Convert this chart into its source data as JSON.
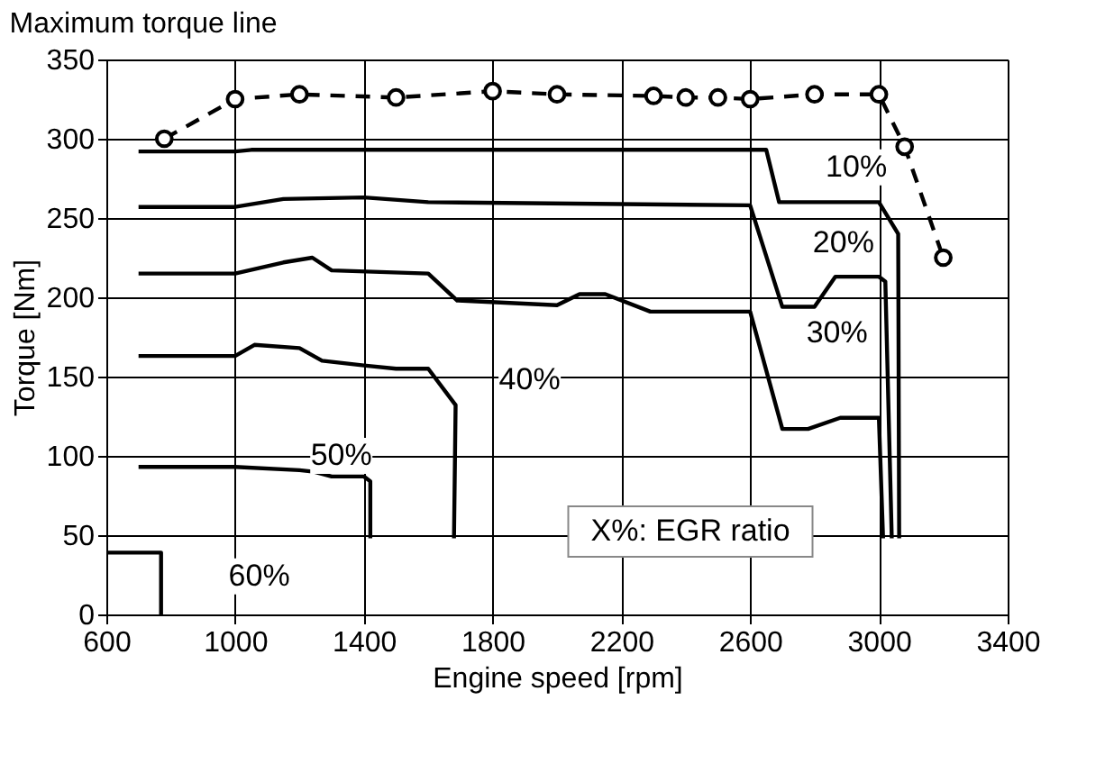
{
  "chart_data": {
    "type": "line",
    "title": "Maximum torque line",
    "xlabel": "Engine speed [rpm]",
    "ylabel": "Torque [Nm]",
    "xlim": [
      600,
      3400
    ],
    "xticks": [
      600,
      1000,
      1400,
      1800,
      2200,
      2600,
      3000,
      3400
    ],
    "ylim": [
      0,
      350
    ],
    "yticks": [
      0,
      50,
      100,
      150,
      200,
      250,
      300,
      350
    ],
    "grid": true,
    "series": [
      {
        "color": "#000000",
        "line_style": "dashed",
        "marker": "circle",
        "x": [
          780,
          1000,
          1200,
          1500,
          1800,
          2000,
          2300,
          2400,
          2500,
          2600,
          2800,
          3000,
          3080,
          3200
        ],
        "values": [
          300,
          325,
          328,
          326,
          330,
          328,
          327,
          326,
          326,
          325,
          328,
          328,
          295,
          225
        ]
      },
      {
        "color": "#000000",
        "line_style": "solid",
        "marker": "none",
        "x": [
          700,
          1000,
          1050,
          2650,
          2690,
          3000,
          3060,
          3063
        ],
        "values": [
          292,
          292,
          293,
          293,
          260,
          260,
          240,
          48
        ]
      },
      {
        "color": "#000000",
        "line_style": "solid",
        "marker": "none",
        "x": [
          700,
          1000,
          1150,
          1400,
          1600,
          2600,
          2700,
          2800,
          2865,
          3000,
          3020,
          3040
        ],
        "values": [
          257,
          257,
          262,
          263,
          260,
          258,
          194,
          194,
          213,
          213,
          210,
          48
        ]
      },
      {
        "color": "#000000",
        "line_style": "solid",
        "marker": "none",
        "x": [
          700,
          1000,
          1150,
          1240,
          1300,
          1600,
          1690,
          2000,
          2070,
          2150,
          2290,
          2600,
          2700,
          2780,
          2880,
          3000,
          3013
        ],
        "values": [
          215,
          215,
          222,
          225,
          217,
          215,
          198,
          195,
          202,
          202,
          191,
          191,
          117,
          117,
          124,
          124,
          48
        ]
      },
      {
        "color": "#000000",
        "line_style": "solid",
        "marker": "none",
        "x": [
          700,
          1000,
          1060,
          1200,
          1270,
          1400,
          1500,
          1600,
          1685,
          1680
        ],
        "values": [
          163,
          163,
          170,
          168,
          160,
          157,
          155,
          155,
          132,
          48
        ]
      },
      {
        "color": "#000000",
        "line_style": "solid",
        "marker": "none",
        "x": [
          700,
          1000,
          1200,
          1245,
          1300,
          1400,
          1420,
          1420
        ],
        "values": [
          93,
          93,
          91,
          90,
          87,
          87,
          84,
          48
        ]
      },
      {
        "color": "#000000",
        "line_style": "solid",
        "marker": "none",
        "x": [
          600,
          770,
          770
        ],
        "values": [
          39,
          39,
          0
        ]
      }
    ],
    "annotations": [
      {
        "text": "10%",
        "x": 2930,
        "y": 282
      },
      {
        "text": "20%",
        "x": 2890,
        "y": 234
      },
      {
        "text": "30%",
        "x": 2870,
        "y": 177
      },
      {
        "text": "40%",
        "x": 1915,
        "y": 148
      },
      {
        "text": "50%",
        "x": 1330,
        "y": 100
      },
      {
        "text": "60%",
        "x": 1075,
        "y": 24
      },
      "X%: EGR ratio"
    ]
  }
}
